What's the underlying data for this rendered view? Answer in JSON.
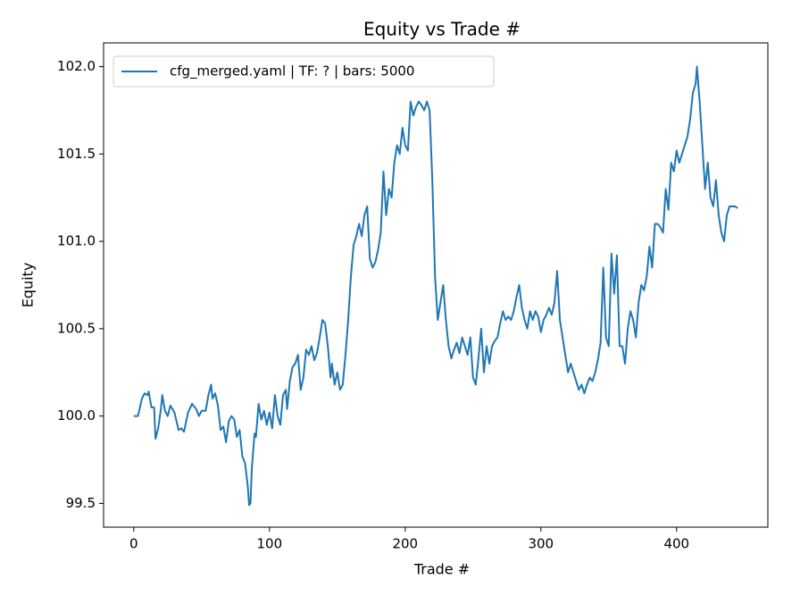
{
  "chart_data": {
    "type": "line",
    "title": "Equity vs Trade #",
    "xlabel": "Trade #",
    "ylabel": "Equity",
    "xlim": [
      -22.25,
      467.25
    ],
    "ylim": [
      99.364,
      102.136
    ],
    "xticks": [
      0,
      100,
      200,
      300,
      400
    ],
    "yticks": [
      99.5,
      {
        "value": 100,
        "label": "100.0"
      },
      100.5,
      {
        "value": 101,
        "label": "101.0"
      },
      101.5,
      {
        "value": 102,
        "label": "102.0"
      }
    ],
    "legend": "upper left",
    "x": [
      0,
      3,
      4,
      6,
      8,
      10,
      11,
      13,
      15,
      16,
      18,
      20,
      21,
      23,
      25,
      27,
      30,
      33,
      35,
      37,
      40,
      43,
      46,
      48,
      50,
      53,
      55,
      57,
      58,
      60,
      62,
      64,
      66,
      68,
      70,
      72,
      74,
      76,
      78,
      80,
      82,
      84,
      85,
      86,
      87,
      89,
      90,
      92,
      94,
      96,
      98,
      100,
      102,
      104,
      106,
      108,
      110,
      112,
      113,
      115,
      117,
      119,
      121,
      123,
      125,
      127,
      129,
      131,
      133,
      135,
      137,
      139,
      141,
      143,
      145,
      146,
      148,
      150,
      152,
      154,
      156,
      158,
      160,
      162,
      164,
      166,
      168,
      170,
      172,
      174,
      176,
      178,
      180,
      182,
      184,
      186,
      188,
      190,
      192,
      194,
      196,
      198,
      200,
      202,
      204,
      206,
      208,
      210,
      212,
      214,
      216,
      218,
      220,
      222,
      224,
      226,
      228,
      230,
      232,
      234,
      236,
      238,
      240,
      242,
      244,
      246,
      248,
      250,
      252,
      254,
      256,
      258,
      260,
      262,
      264,
      266,
      268,
      270,
      272,
      274,
      276,
      278,
      280,
      282,
      284,
      286,
      288,
      290,
      292,
      294,
      296,
      298,
      300,
      302,
      304,
      306,
      308,
      310,
      312,
      314,
      316,
      318,
      320,
      322,
      324,
      326,
      328,
      330,
      332,
      334,
      336,
      338,
      340,
      342,
      344,
      346,
      348,
      350,
      352,
      354,
      356,
      358,
      360,
      362,
      364,
      366,
      368,
      370,
      372,
      374,
      376,
      378,
      380,
      382,
      384,
      386,
      388,
      390,
      392,
      394,
      396,
      398,
      400,
      402,
      404,
      406,
      408,
      410,
      412,
      414,
      415,
      417,
      419,
      421,
      423,
      425,
      427,
      429,
      431,
      433,
      435,
      437,
      439,
      441,
      443,
      445
    ],
    "series": [
      {
        "name": "cfg_merged.yaml | TF: ? | bars: 5000",
        "color": "#1f77b4",
        "values": [
          100.0,
          100.0,
          100.03,
          100.1,
          100.13,
          100.12,
          100.14,
          100.05,
          100.05,
          99.87,
          99.93,
          100.04,
          100.12,
          100.03,
          100.0,
          100.06,
          100.02,
          99.92,
          99.93,
          99.91,
          100.02,
          100.07,
          100.04,
          100.0,
          100.03,
          100.03,
          100.12,
          100.18,
          100.1,
          100.13,
          100.06,
          99.92,
          99.94,
          99.85,
          99.97,
          100.0,
          99.98,
          99.88,
          99.92,
          99.77,
          99.73,
          99.6,
          99.49,
          99.5,
          99.7,
          99.9,
          99.88,
          100.07,
          99.98,
          100.03,
          99.95,
          100.02,
          99.93,
          100.12,
          100.0,
          99.95,
          100.12,
          100.15,
          100.04,
          100.2,
          100.28,
          100.3,
          100.35,
          100.15,
          100.22,
          100.38,
          100.35,
          100.4,
          100.32,
          100.36,
          100.45,
          100.55,
          100.53,
          100.4,
          100.22,
          100.3,
          100.18,
          100.25,
          100.15,
          100.18,
          100.35,
          100.55,
          100.8,
          100.98,
          101.03,
          101.1,
          101.03,
          101.15,
          101.2,
          100.9,
          100.85,
          100.88,
          100.95,
          101.05,
          101.4,
          101.15,
          101.3,
          101.25,
          101.45,
          101.55,
          101.5,
          101.65,
          101.55,
          101.52,
          101.8,
          101.72,
          101.77,
          101.8,
          101.78,
          101.75,
          101.8,
          101.75,
          101.35,
          100.8,
          100.55,
          100.65,
          100.75,
          100.55,
          100.4,
          100.33,
          100.38,
          100.42,
          100.36,
          100.45,
          100.4,
          100.35,
          100.45,
          100.22,
          100.18,
          100.33,
          100.5,
          100.25,
          100.4,
          100.3,
          100.4,
          100.43,
          100.45,
          100.53,
          100.6,
          100.55,
          100.57,
          100.55,
          100.6,
          100.68,
          100.75,
          100.62,
          100.55,
          100.5,
          100.6,
          100.55,
          100.6,
          100.57,
          100.48,
          100.55,
          100.58,
          100.62,
          100.58,
          100.65,
          100.83,
          100.55,
          100.45,
          100.35,
          100.25,
          100.3,
          100.25,
          100.2,
          100.15,
          100.18,
          100.13,
          100.18,
          100.22,
          100.2,
          100.25,
          100.32,
          100.42,
          100.85,
          100.45,
          100.4,
          100.93,
          100.7,
          100.92,
          100.4,
          100.4,
          100.3,
          100.5,
          100.6,
          100.55,
          100.45,
          100.65,
          100.75,
          100.72,
          100.8,
          100.97,
          100.85,
          101.1,
          101.1,
          101.08,
          101.05,
          101.3,
          101.18,
          101.45,
          101.4,
          101.52,
          101.45,
          101.5,
          101.55,
          101.6,
          101.7,
          101.85,
          101.9,
          102.0,
          101.8,
          101.55,
          101.3,
          101.45,
          101.25,
          101.2,
          101.35,
          101.15,
          101.05,
          101.0,
          101.15,
          101.2,
          101.2,
          101.2,
          101.19
        ]
      }
    ]
  }
}
